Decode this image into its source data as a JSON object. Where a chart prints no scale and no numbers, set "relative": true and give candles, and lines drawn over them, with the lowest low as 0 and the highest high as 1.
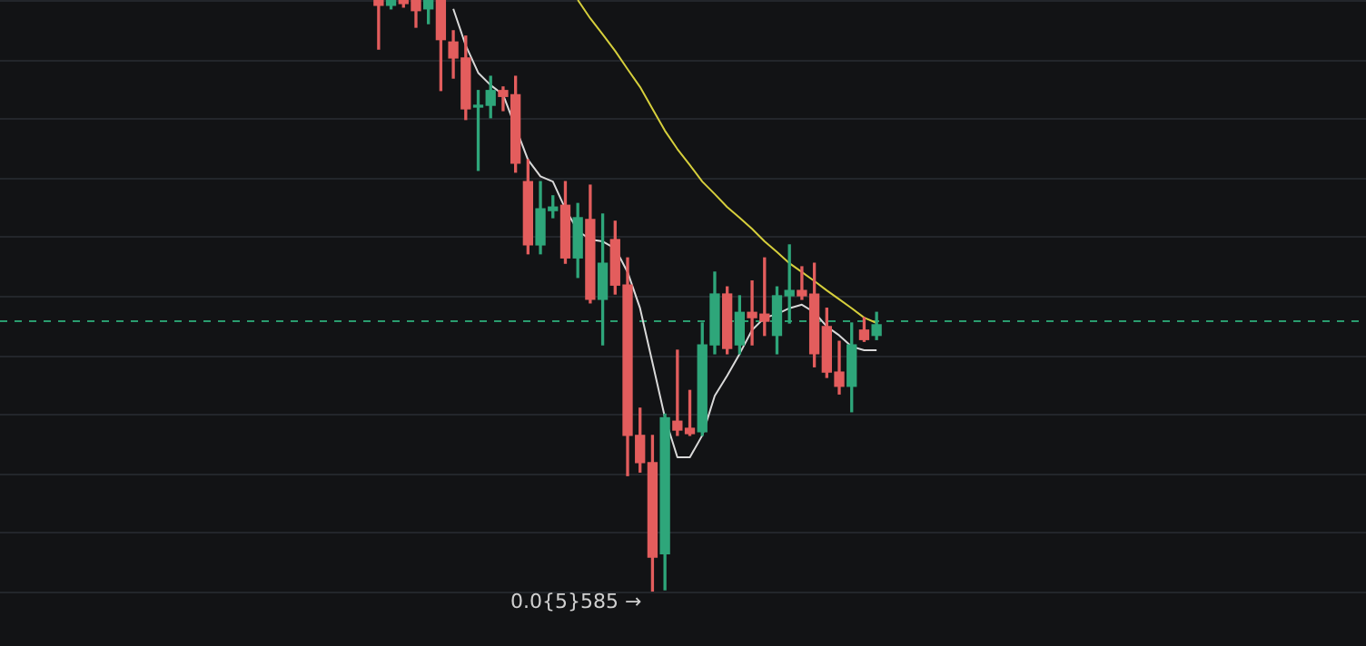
{
  "chart_data": {
    "type": "candlestick",
    "relative": true,
    "grid": "y",
    "marker": "none",
    "categories": [
      null,
      null,
      null,
      null,
      null,
      null,
      null,
      null,
      null,
      null,
      null,
      null,
      null,
      null,
      null,
      null,
      null,
      null,
      null,
      null,
      null,
      null,
      null,
      null,
      null,
      null,
      null,
      null,
      null,
      null,
      null,
      null,
      null,
      null,
      null,
      null,
      null,
      null,
      null,
      null,
      null
    ],
    "ohlc": [
      [
        1,
        1,
        0.917,
        0.991
      ],
      [
        0.991,
        1,
        0.985,
        1
      ],
      [
        1,
        1,
        0.988,
        0.994
      ],
      [
        1,
        1,
        0.954,
        0.982
      ],
      [
        0.985,
        1,
        0.96,
        1
      ],
      [
        1,
        1,
        0.847,
        0.933
      ],
      [
        0.929,
        0.948,
        0.868,
        0.902
      ],
      [
        0.902,
        0.939,
        0.798,
        0.816
      ],
      [
        0.819,
        0.847,
        0.712,
        0.822
      ],
      [
        0.822,
        0.871,
        0.801,
        0.847
      ],
      [
        0.847,
        0.853,
        0.813,
        0.837
      ],
      [
        0.84,
        0.871,
        0.709,
        0.724
      ],
      [
        0.693,
        0.73,
        0.571,
        0.586
      ],
      [
        0.586,
        0.693,
        0.571,
        0.647
      ],
      [
        0.644,
        0.669,
        0.632,
        0.65
      ],
      [
        0.653,
        0.693,
        0.555,
        0.564
      ],
      [
        0.564,
        0.656,
        0.531,
        0.632
      ],
      [
        0.629,
        0.687,
        0.488,
        0.494
      ],
      [
        0.494,
        0.638,
        0.417,
        0.555
      ],
      [
        0.595,
        0.626,
        0.503,
        0.518
      ],
      [
        0.518,
        0.564,
        0.196,
        0.264
      ],
      [
        0.264,
        0.31,
        0.202,
        0.218
      ],
      [
        0.218,
        0.264,
        0,
        0.058
      ],
      [
        0.064,
        0.3,
        0.003,
        0.294
      ],
      [
        0.288,
        0.408,
        0.264,
        0.273
      ],
      [
        0.276,
        0.34,
        0.264,
        0.267
      ],
      [
        0.27,
        0.454,
        0.264,
        0.417
      ],
      [
        0.417,
        0.54,
        0.402,
        0.503
      ],
      [
        0.503,
        0.515,
        0.402,
        0.411
      ],
      [
        0.417,
        0.5,
        0.402,
        0.472
      ],
      [
        0.472,
        0.525,
        0.417,
        0.463
      ],
      [
        0.469,
        0.564,
        0.433,
        0.457
      ],
      [
        0.433,
        0.515,
        0.402,
        0.5
      ],
      [
        0.5,
        0.586,
        0.454,
        0.509
      ],
      [
        0.509,
        0.549,
        0.494,
        0.5
      ],
      [
        0.503,
        0.555,
        0.38,
        0.402
      ],
      [
        0.448,
        0.479,
        0.362,
        0.371
      ],
      [
        0.371,
        0.423,
        0.334,
        0.347
      ],
      [
        0.347,
        0.454,
        0.304,
        0.417
      ],
      [
        0.442,
        0.463,
        0.423,
        0.426
      ],
      [
        0.433,
        0.472,
        0.426,
        0.451
      ]
    ],
    "colors": [
      "#e35d5d",
      "#2ea67a",
      "#e35d5d",
      "#e35d5d",
      "#2ea67a",
      "#e35d5d",
      "#e35d5d",
      "#e35d5d",
      "#2ea67a",
      "#2ea67a",
      "#e35d5d",
      "#e35d5d",
      "#e35d5d",
      "#2ea67a",
      "#2ea67a",
      "#e35d5d",
      "#2ea67a",
      "#e35d5d",
      "#2ea67a",
      "#e35d5d",
      "#e35d5d",
      "#e35d5d",
      "#e35d5d",
      "#2ea67a",
      "#e35d5d",
      "#e35d5d",
      "#2ea67a",
      "#2ea67a",
      "#e35d5d",
      "#2ea67a",
      "#e35d5d",
      "#e35d5d",
      "#2ea67a",
      "#2ea67a",
      "#e35d5d",
      "#e35d5d",
      "#e35d5d",
      "#e35d5d",
      "#2ea67a",
      "#e35d5d",
      "#2ea67a"
    ],
    "series": [
      {
        "type": "line",
        "color": "#d9d9d9",
        "values": [
          null,
          null,
          null,
          null,
          null,
          null,
          0.985,
          0.923,
          0.877,
          0.856,
          0.84,
          null,
          0.73,
          0.702,
          0.693,
          0.647,
          0.61,
          0.595,
          0.592,
          0.58,
          0.54,
          0.479,
          0.387,
          0.294,
          0.227,
          0.227,
          0.264,
          0.331,
          0.365,
          0.402,
          0.442,
          0.463,
          0.469,
          0.479,
          0.485,
          0.472,
          0.448,
          0.433,
          0.414,
          0.408,
          0.408
        ]
      },
      {
        "type": "line",
        "color": "#d6cf3c",
        "values": [
          null,
          null,
          null,
          null,
          null,
          null,
          null,
          null,
          null,
          null,
          null,
          null,
          null,
          null,
          null,
          null,
          1,
          0.969,
          0.942,
          0.914,
          0.883,
          0.853,
          0.816,
          0.779,
          0.748,
          0.721,
          0.693,
          0.672,
          0.65,
          0.632,
          0.613,
          0.592,
          0.574,
          0.555,
          0.54,
          0.525,
          0.509,
          0.494,
          0.479,
          0.463,
          0.454
        ]
      }
    ],
    "ref_lines": [
      {
        "axis": "y",
        "value": 0.457,
        "label": null,
        "color": "#2a9d6f",
        "line_style": "dashed"
      }
    ],
    "annotations": [
      "0.0{5}585 →"
    ]
  }
}
